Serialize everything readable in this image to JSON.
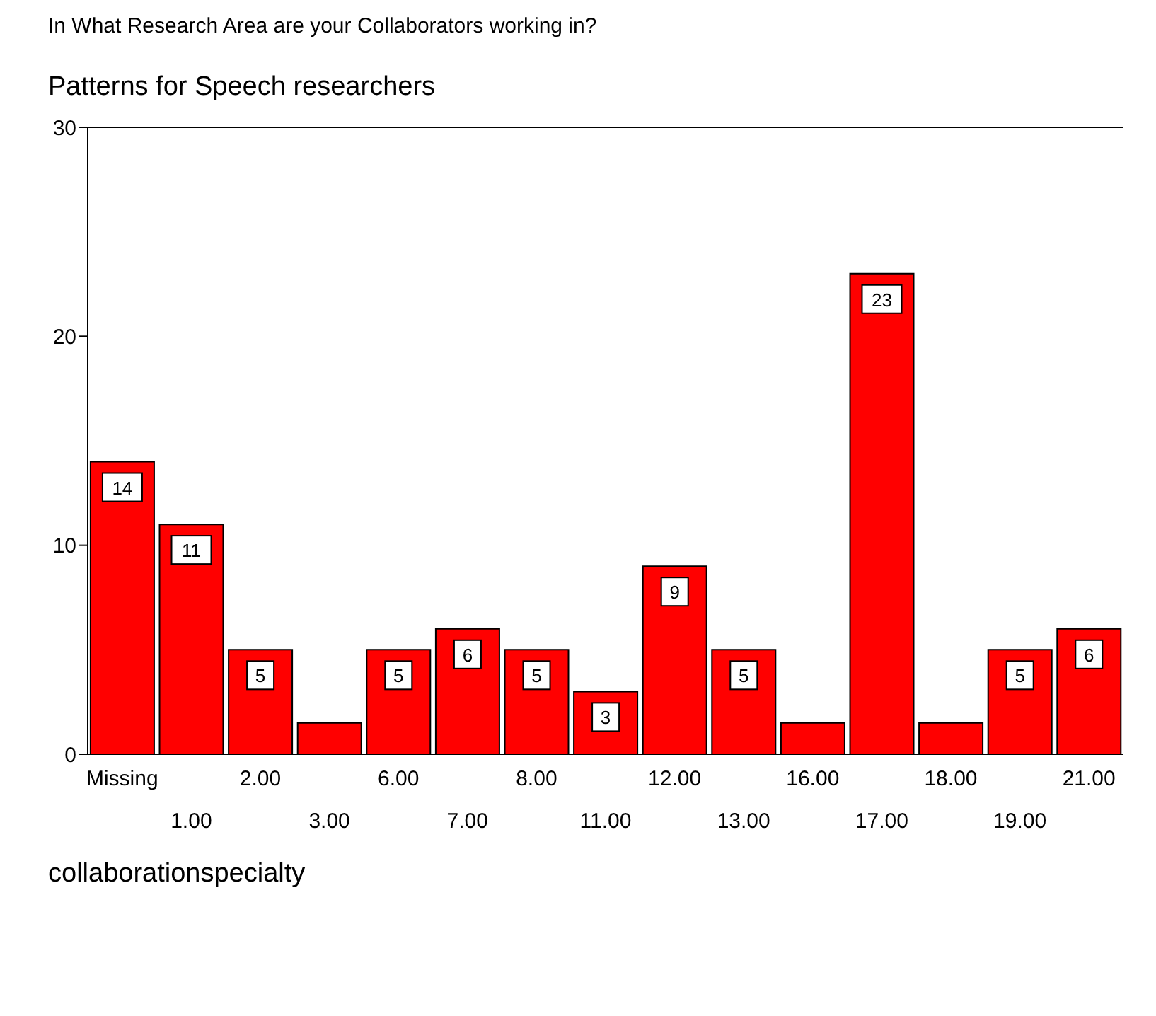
{
  "chart_data": {
    "type": "bar",
    "title": "In What Research Area are your Collaborators working in?",
    "subtitle": "Patterns for Speech researchers",
    "xlabel": "collaborationspecialty",
    "categories": [
      "Missing",
      "1.00",
      "2.00",
      "3.00",
      "6.00",
      "7.00",
      "8.00",
      "11.00",
      "12.00",
      "13.00",
      "16.00",
      "17.00",
      "18.00",
      "19.00",
      "21.00"
    ],
    "values": [
      14,
      11,
      5,
      1.5,
      5,
      6,
      5,
      3,
      9,
      5,
      1.5,
      23,
      1.5,
      5,
      6
    ],
    "value_labels": [
      "14",
      "11",
      "5",
      null,
      "5",
      "6",
      "5",
      "3",
      "9",
      "5",
      null,
      "23",
      null,
      "5",
      "6"
    ],
    "color": "#ff0000",
    "ylim": [
      0,
      30
    ],
    "yticks": [
      0,
      10,
      20,
      30
    ],
    "grid": false
  }
}
